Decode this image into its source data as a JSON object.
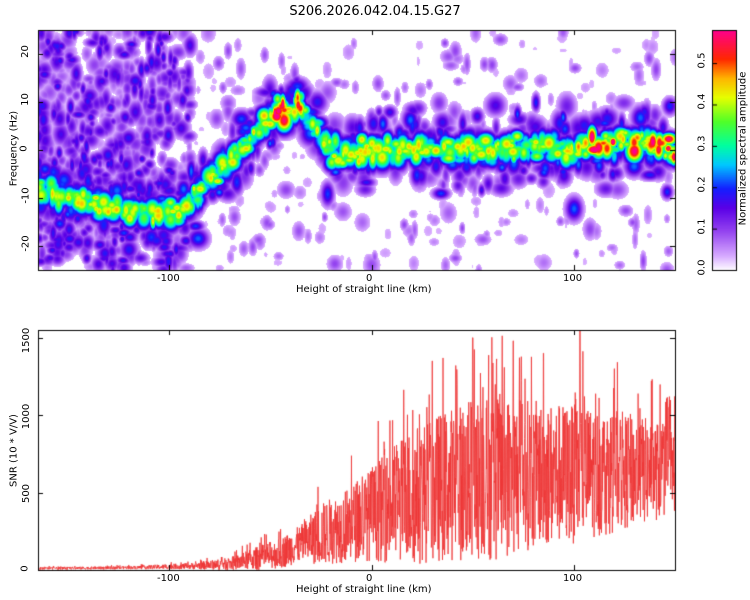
{
  "title": "S206.2026.042.04.15.G27",
  "colors": {
    "snr_line": "#ee3333",
    "spectrogram_low": "#c9a0f5",
    "spectrogram_mid": "#4b00ff",
    "spectrogram_high": "#ff1a66"
  },
  "chart_data": [
    {
      "type": "heatmap",
      "name": "spectrogram",
      "xlabel": "Height of straight line (km)",
      "ylabel": "Frequency (Hz)",
      "xlim": [
        -165,
        150
      ],
      "ylim": [
        -25,
        25
      ],
      "xticks": [
        -100,
        0,
        100
      ],
      "yticks": [
        -20,
        -10,
        0,
        10,
        20
      ],
      "colorbar": {
        "label": "Normalized spectral amplitude",
        "range": [
          0.0,
          0.58
        ],
        "ticks": [
          0.0,
          0.1,
          0.2,
          0.3,
          0.4,
          0.5
        ],
        "tick_labels": [
          "0.0",
          "0.1",
          "0.2",
          "0.3",
          "0.4",
          "0.5"
        ]
      },
      "ridge": {
        "description": "dominant frequency ridge (Hz) versus height (km)",
        "x": [
          -165,
          -140,
          -110,
          -95,
          -80,
          -65,
          -55,
          -48,
          -42,
          -36,
          -30,
          -20,
          -10,
          0,
          20,
          50,
          80,
          100,
          120,
          140,
          150
        ],
        "y": [
          -8,
          -11,
          -13,
          -13,
          -6,
          0,
          5,
          8,
          7,
          10,
          5,
          0,
          -1,
          0,
          1,
          0,
          1,
          0,
          2,
          1,
          0
        ]
      }
    },
    {
      "type": "line",
      "name": "snr",
      "xlabel": "Height of straight line (km)",
      "ylabel": "SNR (10 * V/V)",
      "xlim": [
        -165,
        150
      ],
      "ylim": [
        0,
        1550
      ],
      "xticks": [
        -100,
        0,
        100
      ],
      "yticks": [
        0,
        500,
        1000,
        1500
      ],
      "envelope": {
        "description": "approximate centre and amplitude of the noisy SNR trace",
        "x": [
          -165,
          -120,
          -90,
          -70,
          -55,
          -45,
          -35,
          -25,
          -10,
          0,
          10,
          20,
          40,
          60,
          80,
          100,
          120,
          140,
          150
        ],
        "center": [
          10,
          15,
          25,
          40,
          80,
          110,
          170,
          230,
          300,
          360,
          420,
          480,
          560,
          600,
          620,
          620,
          640,
          640,
          650
        ],
        "spread": [
          8,
          10,
          20,
          40,
          80,
          100,
          120,
          200,
          250,
          300,
          380,
          450,
          500,
          550,
          480,
          450,
          400,
          330,
          280
        ],
        "peaks": [
          {
            "x": 30,
            "y": 1350
          },
          {
            "x": 50,
            "y": 1500
          },
          {
            "x": 55,
            "y": 1180
          },
          {
            "x": 70,
            "y": 1480
          },
          {
            "x": 85,
            "y": 1400
          },
          {
            "x": 103,
            "y": 1550
          },
          {
            "x": 120,
            "y": 1300
          },
          {
            "x": 147,
            "y": 1050
          }
        ]
      }
    }
  ]
}
